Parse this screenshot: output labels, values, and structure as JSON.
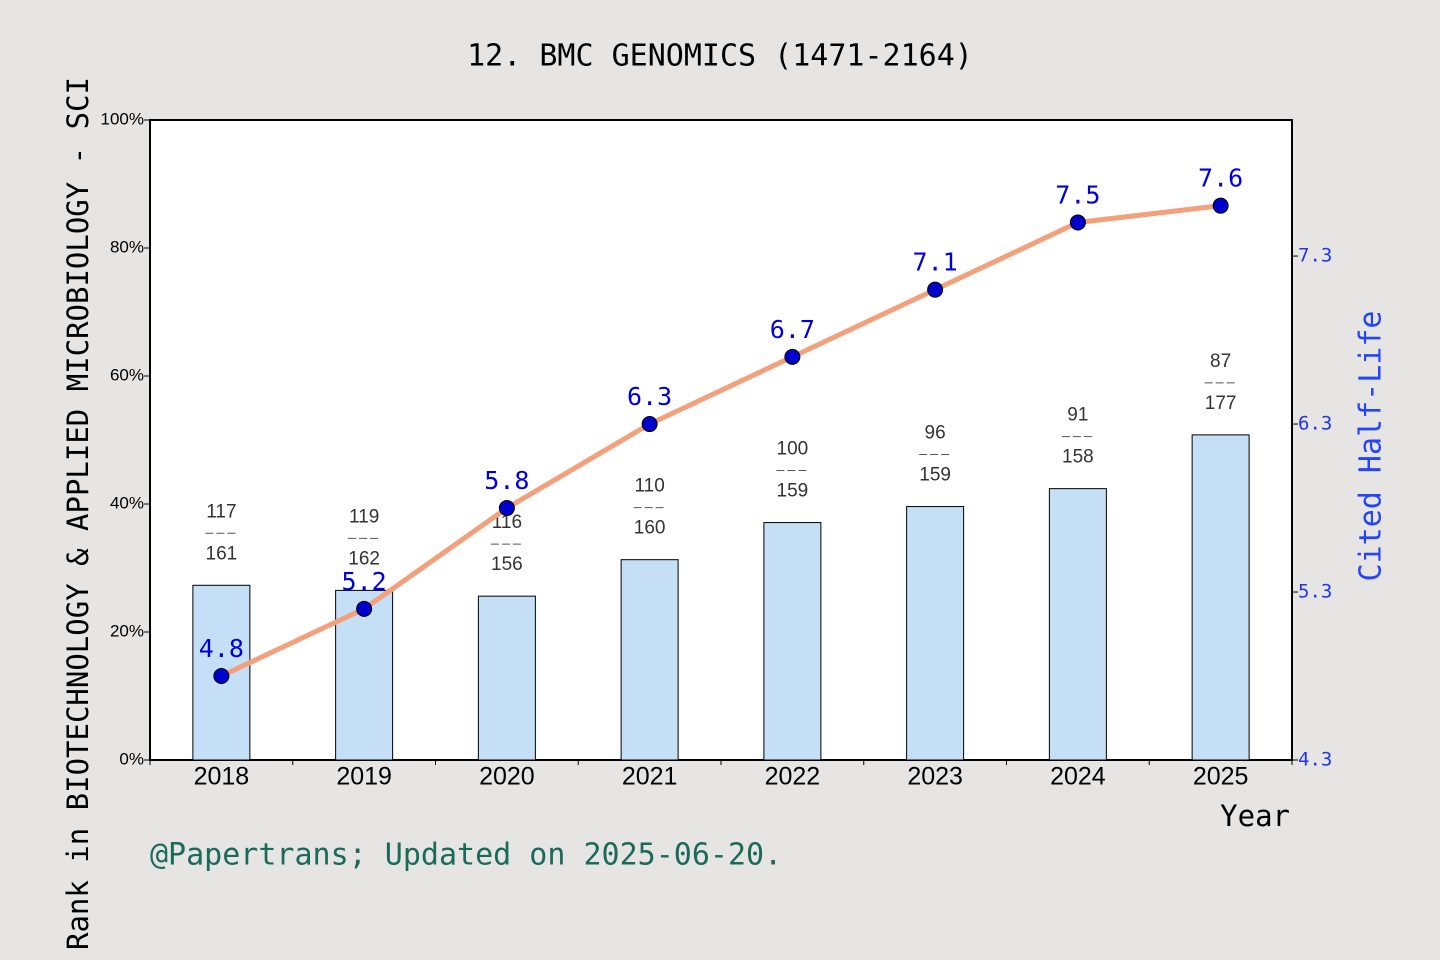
{
  "chart_data": {
    "type": "bar",
    "title": "12. BMC GENOMICS (1471-2164)",
    "ylabel": "Rank in BIOTECHNOLOGY & APPLIED MICROBIOLOGY - SCI",
    "y2label": "Cited Half-Life",
    "xlabel": "Year",
    "footer": "@Papertrans; Updated on 2025-06-20.",
    "categories": [
      "2018",
      "2019",
      "2020",
      "2021",
      "2022",
      "2023",
      "2024",
      "2025"
    ],
    "ylim": [
      0,
      100
    ],
    "yticks": [
      {
        "value": 0,
        "label": "0%"
      },
      {
        "value": 20,
        "label": "20%"
      },
      {
        "value": 40,
        "label": "40%"
      },
      {
        "value": 60,
        "label": "60%"
      },
      {
        "value": 80,
        "label": "80%"
      },
      {
        "value": 100,
        "label": "100%"
      }
    ],
    "y2lim": [
      4.3,
      8.11
    ],
    "y2ticks": [
      4.3,
      5.3,
      6.3,
      7.3
    ],
    "series": [
      {
        "type": "bar",
        "color": "#c5dff7",
        "values": [
          27.3,
          26.5,
          25.6,
          31.3,
          37.1,
          39.6,
          42.4,
          50.8
        ],
        "ranks": [
          117,
          119,
          116,
          110,
          100,
          96,
          91,
          87
        ],
        "totals": [
          161,
          162,
          156,
          160,
          159,
          159,
          158,
          177
        ]
      },
      {
        "type": "line",
        "axis": "y2",
        "color": "#f4a07c",
        "marker_color": "#0000cc",
        "label_color": "#0000dd",
        "values": [
          4.8,
          5.2,
          5.8,
          6.3,
          6.7,
          7.1,
          7.5,
          7.6
        ]
      }
    ]
  }
}
